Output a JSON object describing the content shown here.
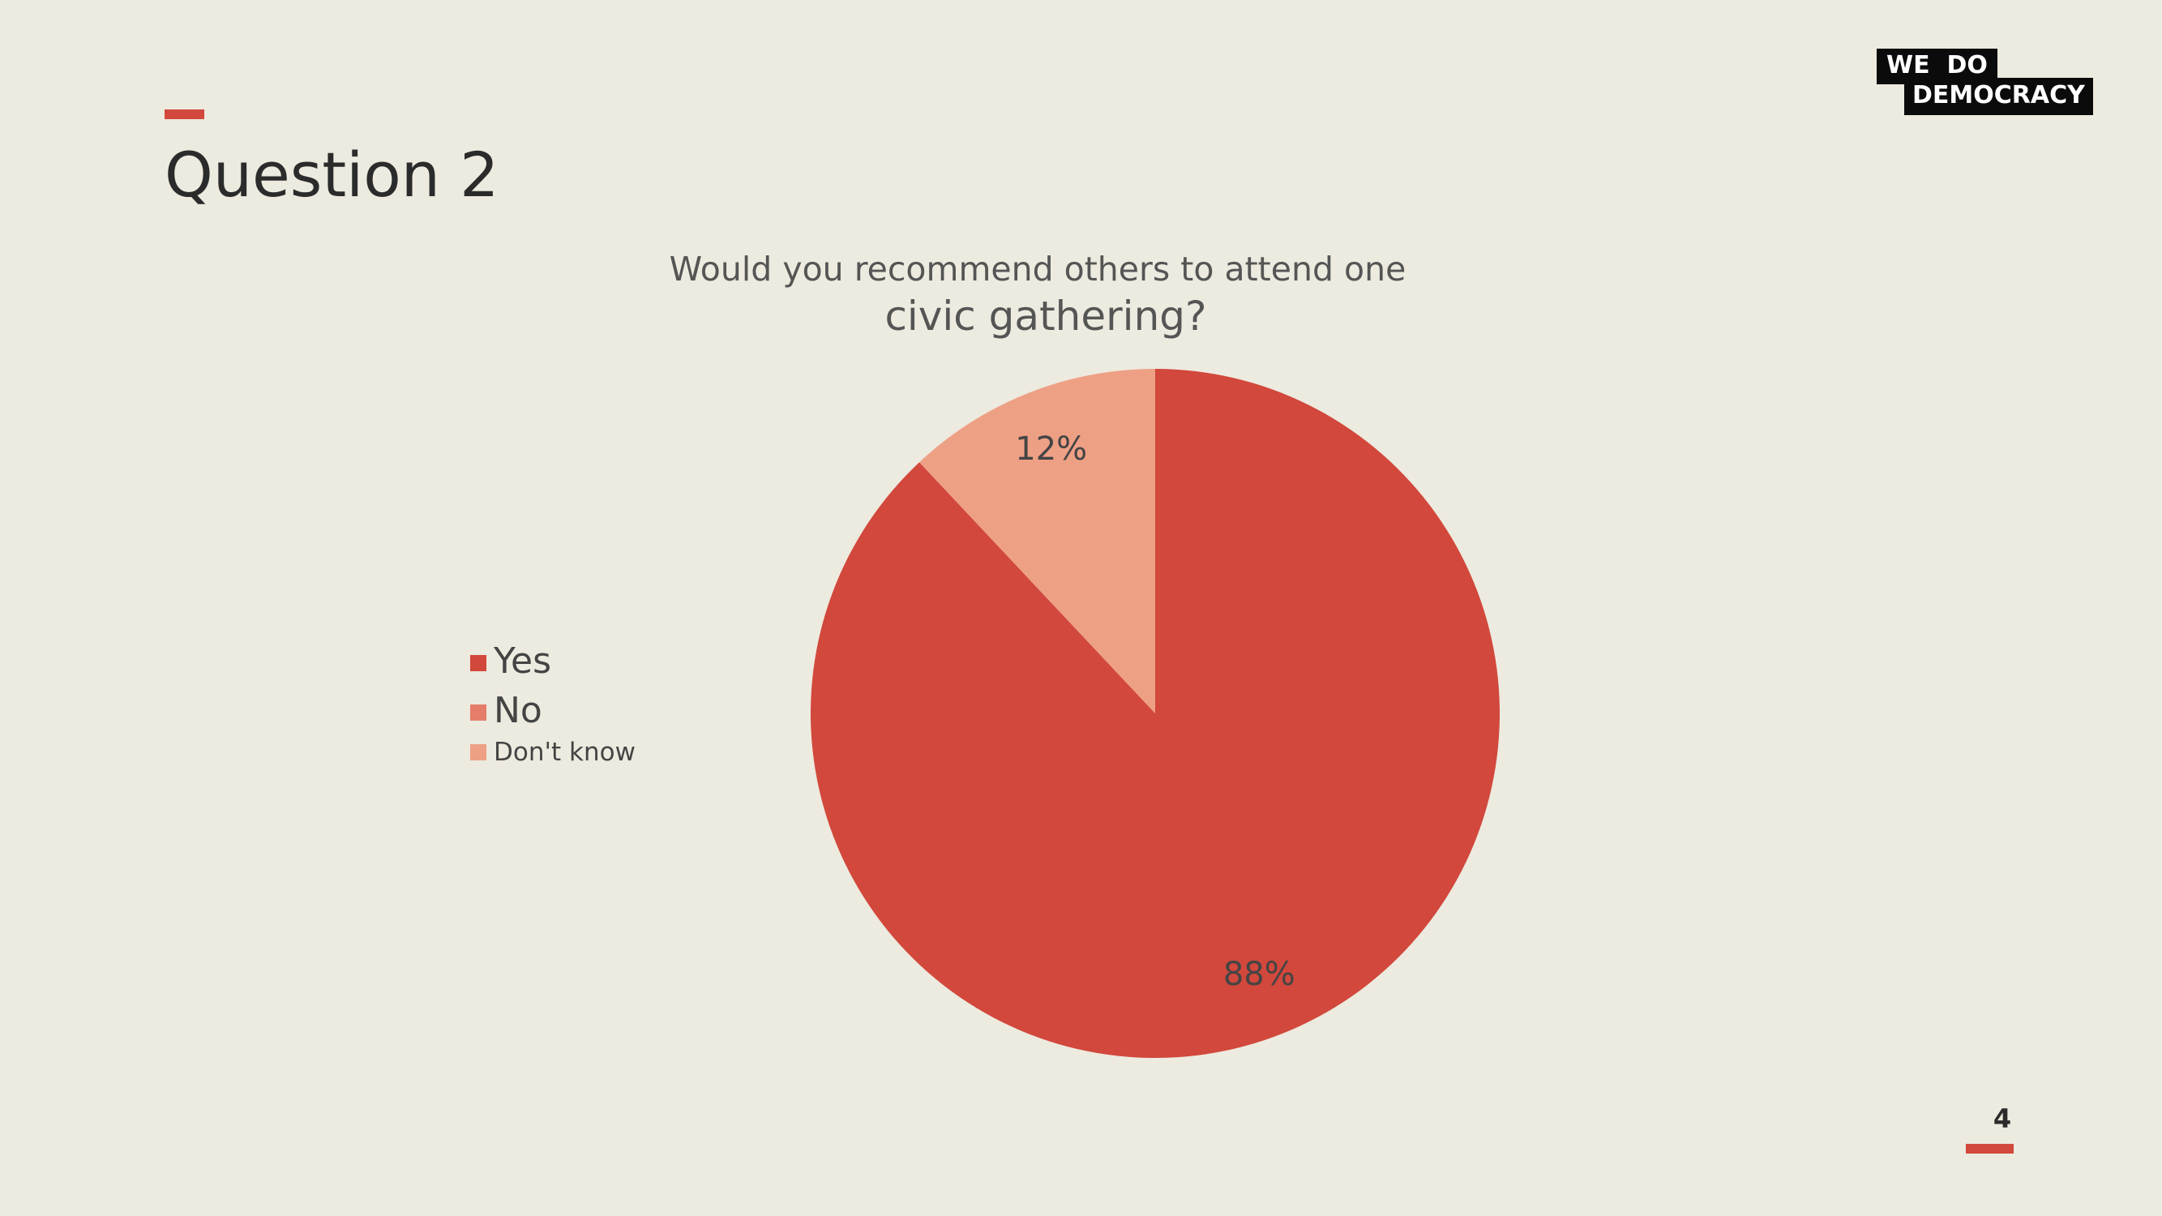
{
  "slide": {
    "title": "Question 2",
    "page_number": "4",
    "accent_color": "#D2483C",
    "background_color": "#EDEADF"
  },
  "logo": {
    "line1": "WE  DO",
    "line2": "DEMOCRACY"
  },
  "chart_data": {
    "type": "pie",
    "title_line1": "Would you recommend others to attend one",
    "title_line2": "civic gathering?",
    "categories": [
      "Yes",
      "No",
      "Don't know"
    ],
    "values": [
      88,
      0,
      12
    ],
    "data_labels": [
      "88%",
      "",
      "12%"
    ],
    "colors": [
      "#D2483C",
      "#E47D6A",
      "#EEA085"
    ],
    "start_angle_deg": 0,
    "direction": "clockwise",
    "legend_position": "left"
  }
}
